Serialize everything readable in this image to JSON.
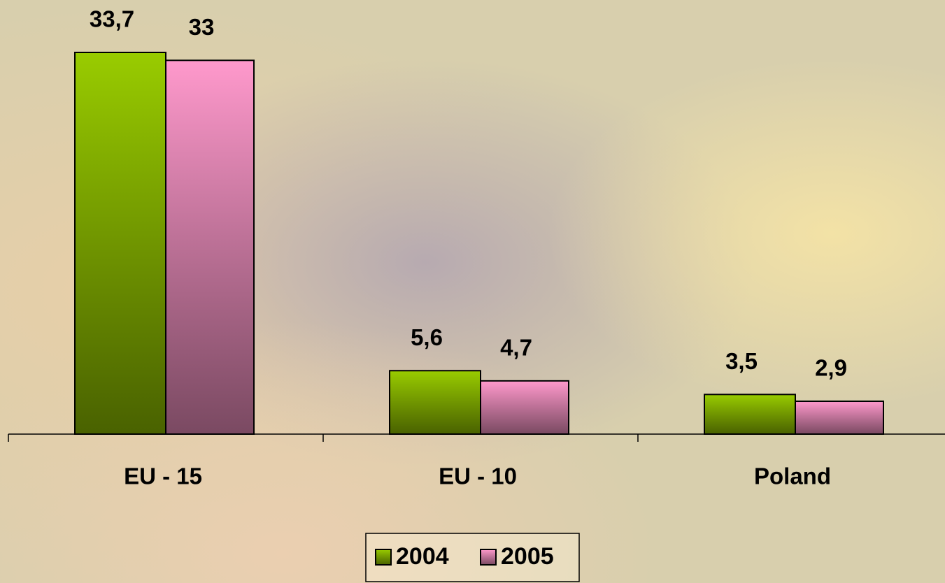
{
  "chart_data": {
    "type": "bar",
    "categories": [
      "EU - 15",
      "EU - 10",
      "Poland"
    ],
    "series": [
      {
        "name": "2004",
        "color": "#99cc00",
        "values": [
          33.7,
          5.6,
          3.5
        ],
        "value_labels": [
          "33,7",
          "5,6",
          "3,5"
        ]
      },
      {
        "name": "2005",
        "color": "#ff99cc",
        "values": [
          33,
          4.7,
          2.9
        ],
        "value_labels": [
          "33",
          "4,7",
          "2,9"
        ]
      }
    ],
    "legend": "bottom"
  }
}
